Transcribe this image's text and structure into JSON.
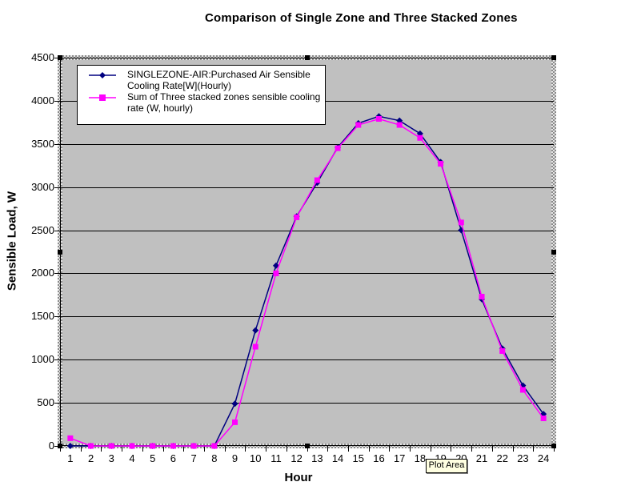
{
  "title": "Comparison of Single Zone and Three Stacked Zones",
  "tooltip": {
    "text": "Plot Area"
  },
  "axes": {
    "y_title": "Sensible Load, W",
    "x_title": "Hour",
    "y_ticks": [
      "0",
      "500",
      "1000",
      "1500",
      "2000",
      "2500",
      "3000",
      "3500",
      "4000",
      "4500"
    ]
  },
  "legend": {
    "entries": [
      {
        "line1": "SINGLEZONE-AIR:Purchased Air Sensible",
        "line2": "Cooling Rate[W](Hourly)",
        "marker": "diamond",
        "color": "#000080"
      },
      {
        "line1": "Sum of Three stacked zones sensible cooling",
        "line2": "rate (W, hourly)",
        "marker": "square",
        "color": "#FF00FF"
      }
    ]
  },
  "colors": {
    "plot_background": "#C0C0C0",
    "gridline": "#000000",
    "series1": "#000080",
    "series2": "#FF00FF",
    "tooltip_background": "#FFFFE1",
    "selection_handle": "#000000"
  },
  "chart_data": {
    "type": "line",
    "title": "Comparison of Single Zone and Three Stacked Zones",
    "xlabel": "Hour",
    "ylabel": "Sensible Load, W",
    "x": [
      1,
      2,
      3,
      4,
      5,
      6,
      7,
      8,
      9,
      10,
      11,
      12,
      13,
      14,
      15,
      16,
      17,
      18,
      19,
      20,
      21,
      22,
      23,
      24
    ],
    "ylim": [
      0,
      4500
    ],
    "ytick_step": 500,
    "grid": true,
    "plot_background": "#C0C0C0",
    "legend_position": "top-left-inside",
    "selected_element": "Plot Area",
    "series": [
      {
        "name": "SINGLEZONE-AIR:Purchased Air Sensible Cooling Rate[W](Hourly)",
        "color": "#000080",
        "marker": "diamond",
        "values": [
          0,
          0,
          0,
          0,
          0,
          0,
          0,
          0,
          490,
          1340,
          2090,
          2660,
          3050,
          3460,
          3740,
          3820,
          3770,
          3620,
          3290,
          2500,
          1700,
          1130,
          700,
          370
        ]
      },
      {
        "name": "Sum of Three stacked zones sensible cooling rate (W, hourly)",
        "color": "#FF00FF",
        "marker": "square",
        "values": [
          90,
          0,
          0,
          0,
          0,
          0,
          0,
          0,
          275,
          1150,
          2000,
          2650,
          3080,
          3450,
          3720,
          3790,
          3720,
          3570,
          3270,
          2590,
          1730,
          1100,
          650,
          320
        ]
      }
    ]
  }
}
